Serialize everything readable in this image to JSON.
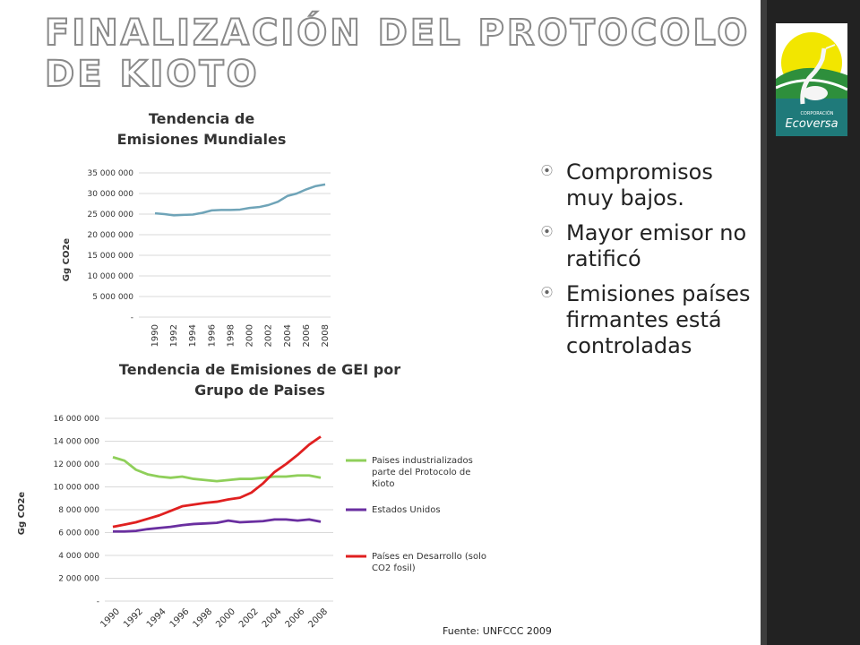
{
  "title": "Finalización del Protocolo de Kioto",
  "logo": {
    "text_top": "CORPORACIÓN",
    "text_main": "Ecoversa"
  },
  "bullets": [
    "Compromisos muy bajos.",
    "Mayor emisor no ratificó",
    "Emisiones países firmantes está controladas"
  ],
  "source": "Fuente: UNFCCC 2009",
  "colors": {
    "world_line": "#6fa4b8",
    "industrial": "#8fcf5a",
    "usa": "#6a2fa0",
    "developing": "#e02020",
    "title_outline": "#8a8a8a",
    "band": "#222222"
  },
  "chart_data": [
    {
      "type": "line",
      "title": "Tendencia de Emisiones Mundiales",
      "title_lines": [
        "Tendencia de",
        "Emisiones Mundiales"
      ],
      "ylabel": "Gg CO2e",
      "xlabel": "",
      "ylim": [
        0,
        35000000
      ],
      "yticks": [
        0,
        5000000,
        10000000,
        15000000,
        20000000,
        25000000,
        30000000,
        35000000
      ],
      "ytick_labels": [
        "-",
        "5 000 000",
        "10 000 000",
        "15 000 000",
        "20 000 000",
        "25 000 000",
        "30 000 000",
        "35 000 000"
      ],
      "x": [
        1990,
        1991,
        1992,
        1993,
        1994,
        1995,
        1996,
        1997,
        1998,
        1999,
        2000,
        2001,
        2002,
        2003,
        2004,
        2005,
        2006,
        2007,
        2008
      ],
      "xtick_labels": [
        "1990",
        "1992",
        "1994",
        "1996",
        "1998",
        "2000",
        "2002",
        "2004",
        "2006",
        "2008"
      ],
      "grid": "horizontal",
      "series": [
        {
          "values": [
            25200000,
            25000000,
            24700000,
            24800000,
            24900000,
            25300000,
            25900000,
            26000000,
            26000000,
            26100000,
            26500000,
            26700000,
            27200000,
            28000000,
            29400000,
            30000000,
            31000000,
            31800000,
            32200000
          ]
        }
      ]
    },
    {
      "type": "line",
      "title": "Tendencia de Emisiones de GEI por Grupo de Paises",
      "title_lines": [
        "Tendencia de Emisiones de GEI por",
        "Grupo de Paises"
      ],
      "ylabel": "Gg CO2e",
      "xlabel": "",
      "ylim": [
        0,
        16000000
      ],
      "yticks": [
        0,
        2000000,
        4000000,
        6000000,
        8000000,
        10000000,
        12000000,
        14000000,
        16000000
      ],
      "ytick_labels": [
        "-",
        "2 000 000",
        "4 000 000",
        "6 000 000",
        "8 000 000",
        "10 000 000",
        "12 000 000",
        "14 000 000",
        "16 000 000"
      ],
      "x": [
        1990,
        1991,
        1992,
        1993,
        1994,
        1995,
        1996,
        1997,
        1998,
        1999,
        2000,
        2001,
        2002,
        2003,
        2004,
        2005,
        2006,
        2007,
        2008
      ],
      "xtick_labels": [
        "1990",
        "1992",
        "1994",
        "1996",
        "1998",
        "2000",
        "2002",
        "2004",
        "2006",
        "2008"
      ],
      "grid": "horizontal",
      "legend": "right",
      "series": [
        {
          "name": "Paises industrializados parte del Protocolo de Kioto",
          "legend_lines": [
            "Paises industrializados",
            "parte del Protocolo de",
            "Kioto"
          ],
          "color": "#8fcf5a",
          "values": [
            12600000,
            12300000,
            11500000,
            11100000,
            10900000,
            10800000,
            10900000,
            10700000,
            10600000,
            10500000,
            10600000,
            10700000,
            10700000,
            10800000,
            10900000,
            10900000,
            11000000,
            11000000,
            10800000
          ]
        },
        {
          "name": "Estados Unidos",
          "legend_lines": [
            "Estados Unidos"
          ],
          "color": "#6a2fa0",
          "values": [
            6100000,
            6100000,
            6150000,
            6300000,
            6400000,
            6500000,
            6650000,
            6750000,
            6800000,
            6850000,
            7050000,
            6900000,
            6950000,
            7000000,
            7150000,
            7150000,
            7050000,
            7150000,
            6950000
          ]
        },
        {
          "name": "Países en Desarrollo (solo CO2 fosil)",
          "legend_lines": [
            "Países en Desarrollo (solo",
            "CO2 fosil)"
          ],
          "color": "#e02020",
          "values": [
            6500000,
            6700000,
            6900000,
            7200000,
            7500000,
            7900000,
            8300000,
            8450000,
            8600000,
            8700000,
            8900000,
            9050000,
            9500000,
            10300000,
            11300000,
            12000000,
            12800000,
            13700000,
            14400000
          ]
        }
      ]
    }
  ]
}
